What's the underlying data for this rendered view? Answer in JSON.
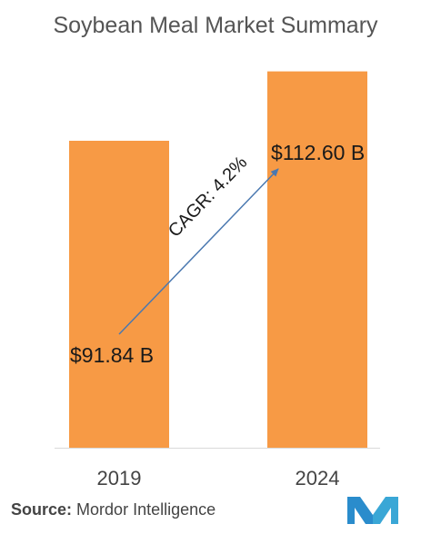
{
  "title": "Soybean Meal Market Summary",
  "source": {
    "label": "Source:",
    "text": "Mordor Intelligence"
  },
  "colors": {
    "bar": "#f79a45",
    "arrow": "#4a78b0",
    "text": "#1a1a1a",
    "logo": "#2a8ccc"
  },
  "annotation": {
    "text": "CAGR: 4.2%"
  },
  "chart_data": {
    "type": "bar",
    "title": "Soybean Meal Market Summary",
    "categories": [
      "2019",
      "2024"
    ],
    "values": [
      91.84,
      112.6
    ],
    "value_labels": [
      "$91.84 B",
      "$112.60 B"
    ],
    "xlabel": "",
    "ylabel": "",
    "grid": false,
    "legend": "none"
  }
}
